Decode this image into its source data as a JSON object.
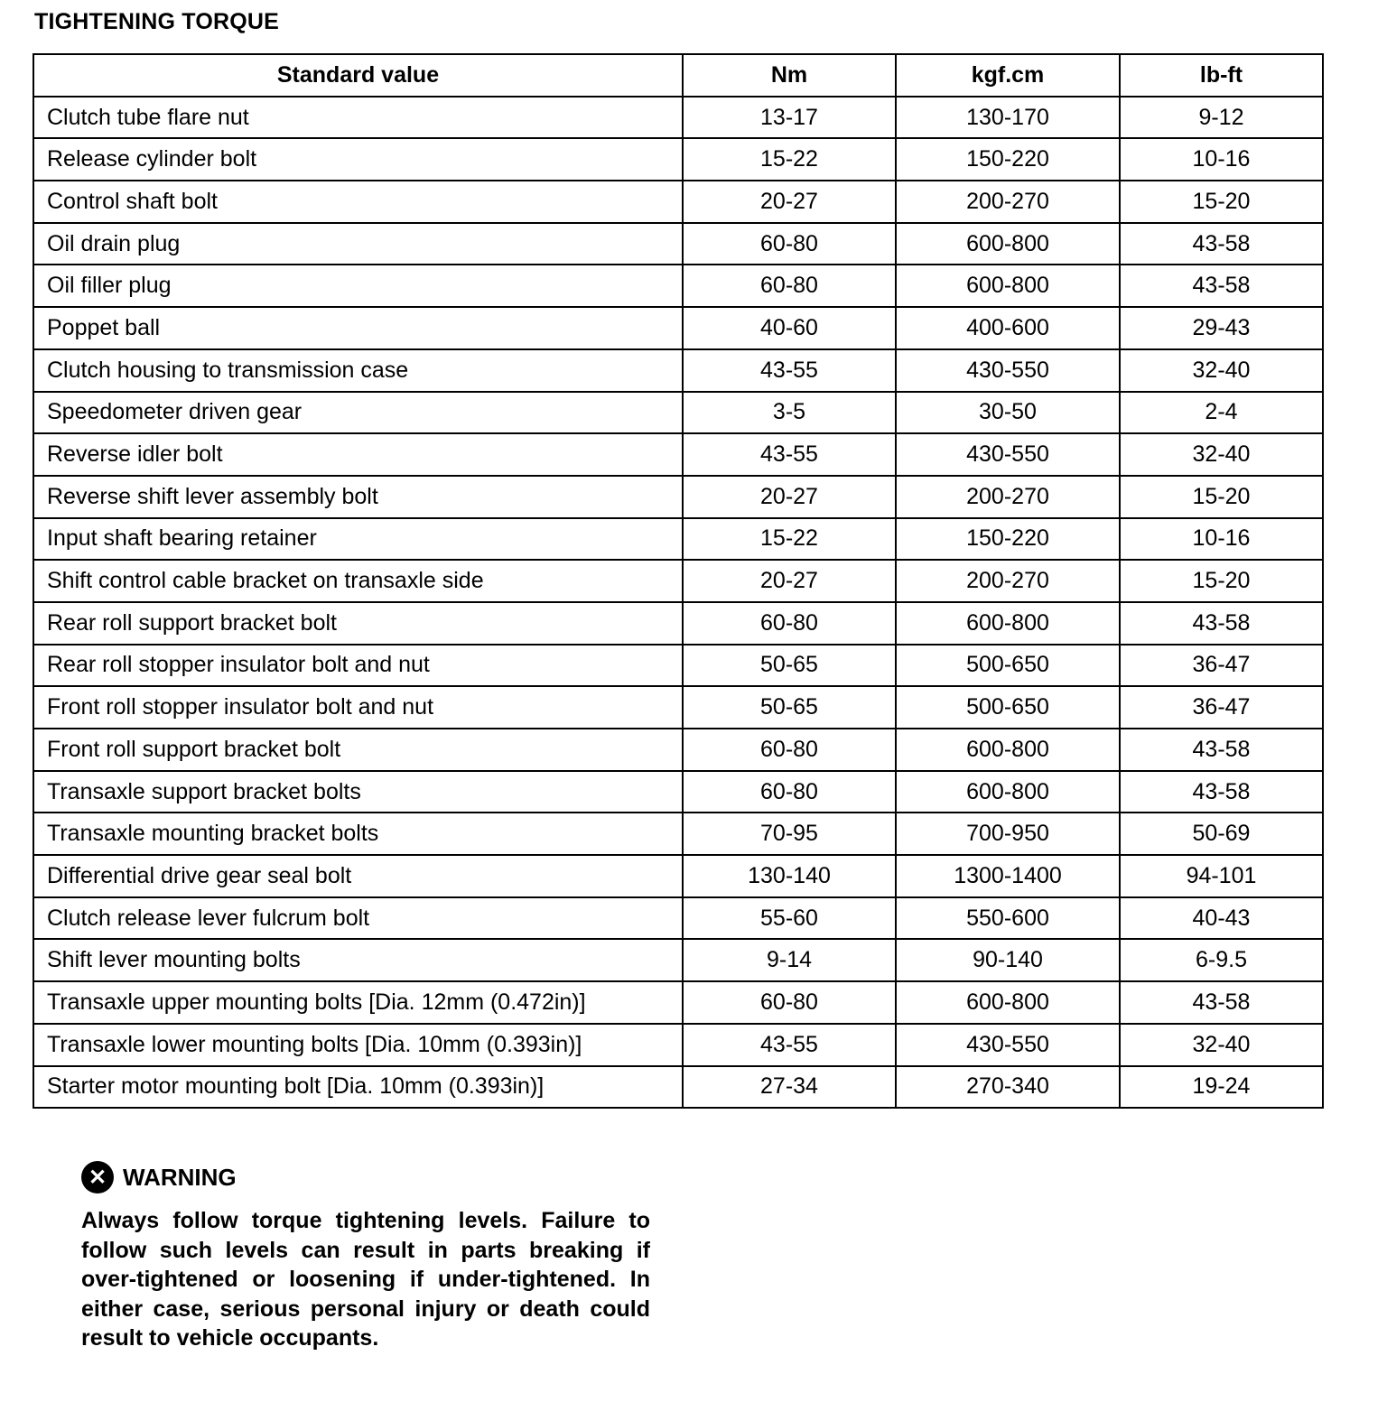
{
  "title": "TIGHTENING TORQUE",
  "table": {
    "headers": [
      "Standard value",
      "Nm",
      "kgf.cm",
      "lb-ft"
    ],
    "rows": [
      [
        "Clutch tube flare nut",
        "13-17",
        "130-170",
        "9-12"
      ],
      [
        "Release cylinder bolt",
        "15-22",
        "150-220",
        "10-16"
      ],
      [
        "Control shaft bolt",
        "20-27",
        "200-270",
        "15-20"
      ],
      [
        "Oil drain plug",
        "60-80",
        "600-800",
        "43-58"
      ],
      [
        "Oil filler plug",
        "60-80",
        "600-800",
        "43-58"
      ],
      [
        "Poppet ball",
        "40-60",
        "400-600",
        "29-43"
      ],
      [
        "Clutch housing to transmission case",
        "43-55",
        "430-550",
        "32-40"
      ],
      [
        "Speedometer driven gear",
        "3-5",
        "30-50",
        "2-4"
      ],
      [
        "Reverse idler bolt",
        "43-55",
        "430-550",
        "32-40"
      ],
      [
        "Reverse shift lever assembly bolt",
        "20-27",
        "200-270",
        "15-20"
      ],
      [
        "Input shaft bearing retainer",
        "15-22",
        "150-220",
        "10-16"
      ],
      [
        "Shift control cable bracket on transaxle side",
        "20-27",
        "200-270",
        "15-20"
      ],
      [
        "Rear roll support bracket bolt",
        "60-80",
        "600-800",
        "43-58"
      ],
      [
        "Rear roll stopper insulator bolt and nut",
        "50-65",
        "500-650",
        "36-47"
      ],
      [
        "Front roll stopper insulator bolt and nut",
        "50-65",
        "500-650",
        "36-47"
      ],
      [
        "Front roll support bracket bolt",
        "60-80",
        "600-800",
        "43-58"
      ],
      [
        "Transaxle support bracket bolts",
        "60-80",
        "600-800",
        "43-58"
      ],
      [
        "Transaxle mounting bracket bolts",
        "70-95",
        "700-950",
        "50-69"
      ],
      [
        "Differential drive gear seal bolt",
        "130-140",
        "1300-1400",
        "94-101"
      ],
      [
        "Clutch release lever fulcrum bolt",
        "55-60",
        "550-600",
        "40-43"
      ],
      [
        "Shift lever mounting bolts",
        "9-14",
        "90-140",
        "6-9.5"
      ],
      [
        "Transaxle upper mounting bolts [Dia. 12mm (0.472in)]",
        "60-80",
        "600-800",
        "43-58"
      ],
      [
        "Transaxle lower mounting bolts [Dia. 10mm (0.393in)]",
        "43-55",
        "430-550",
        "32-40"
      ],
      [
        "Starter motor mounting bolt [Dia. 10mm (0.393in)]",
        "27-34",
        "270-340",
        "19-24"
      ]
    ]
  },
  "warning": {
    "icon": "x-circle-icon",
    "icon_glyph": "✕",
    "label": "WARNING",
    "text": "Always follow torque tightening levels.  Failure to follow such levels can result in parts breaking if over-tightened or loosening if under-tightened. In either case, serious personal injury or death could result to vehicle occupants."
  }
}
